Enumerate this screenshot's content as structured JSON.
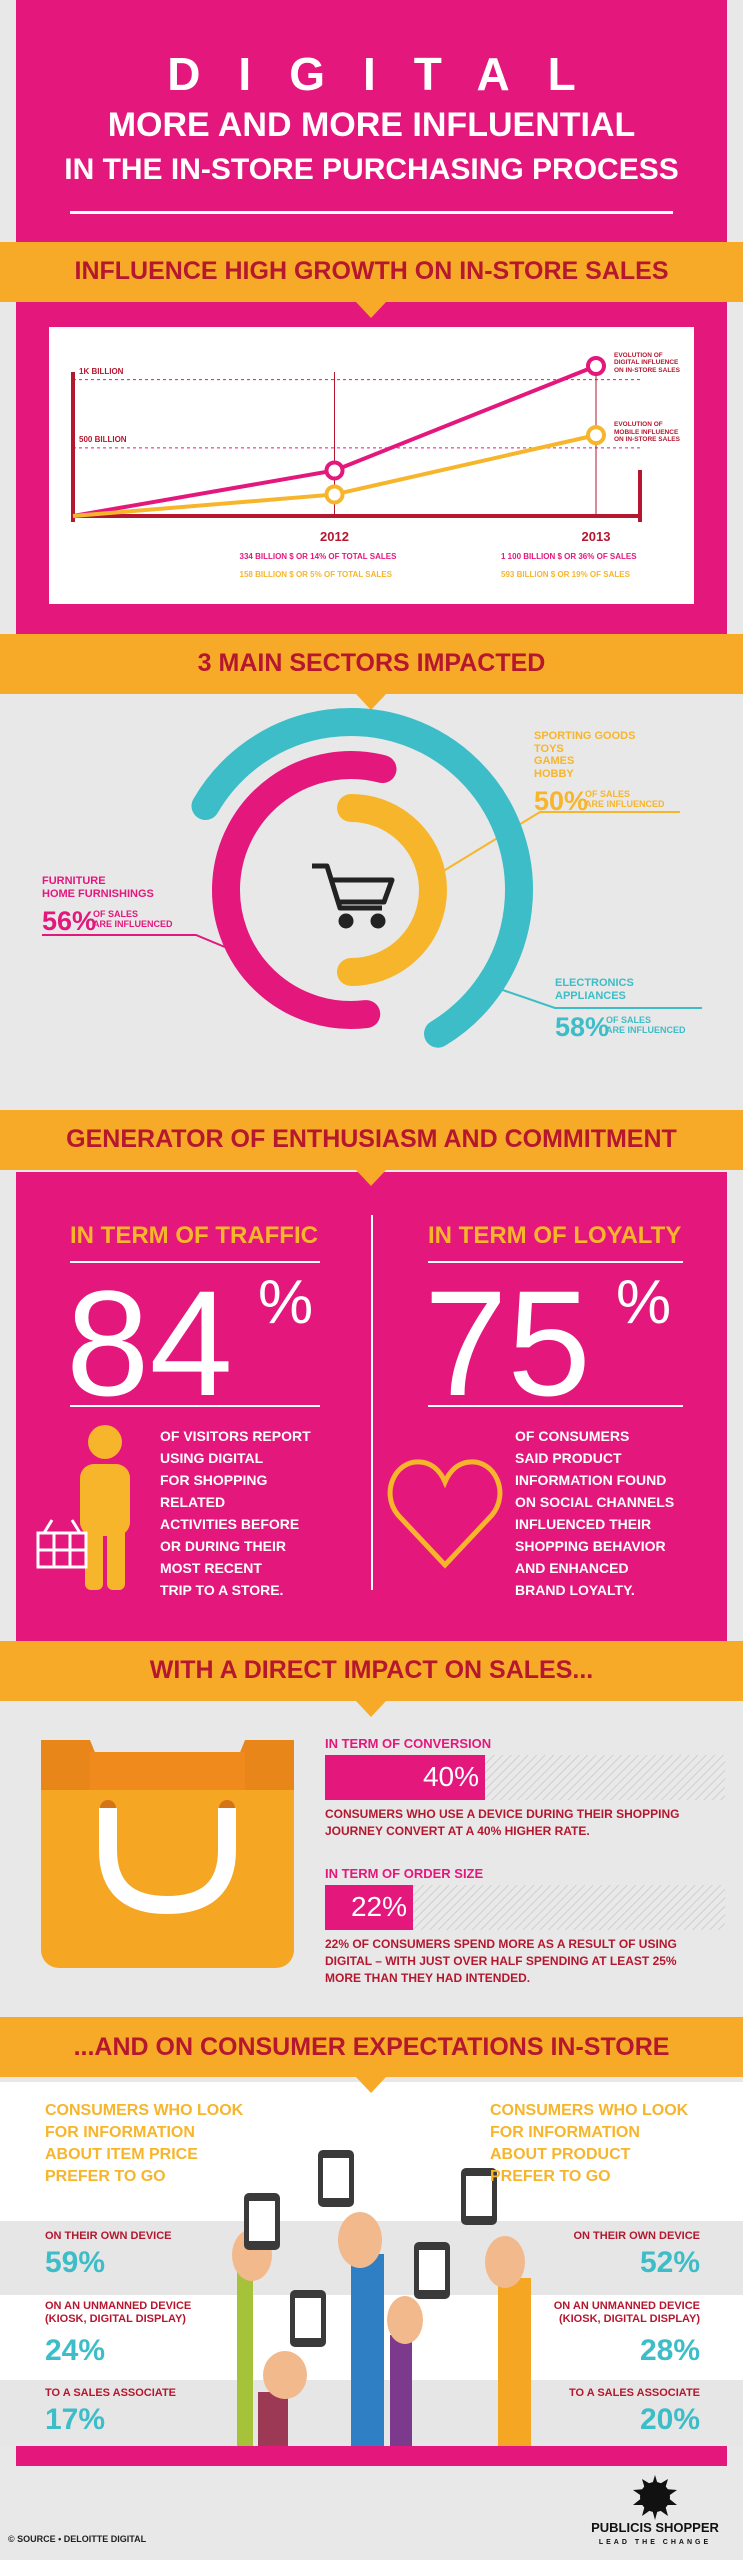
{
  "header": {
    "title": "DIGITAL",
    "lines": [
      "MORE AND MORE INFLUENTIAL",
      "IN THE IN-STORE PURCHASING PROCESS"
    ]
  },
  "chart_data": [
    {
      "type": "line",
      "title": "INFLUENCE HIGH GROWTH ON IN-STORE SALES",
      "categories": [
        null,
        "2012",
        "2013"
      ],
      "series": [
        {
          "name": "EVOLUTION OF DIGITAL INFLUENCE ON IN-STORE SALES",
          "color": "#e4177d",
          "values": [
            0,
            334,
            1100
          ],
          "value_labels": [
            null,
            "334 BILLION $ OR 14% OF TOTAL SALES",
            "1 100 BILLION $ OR 36% OF SALES"
          ]
        },
        {
          "name": "EVOLUTION OF MOBILE INFLUENCE ON IN-STORE SALES",
          "color": "#f7b52c",
          "values": [
            0,
            158,
            593
          ],
          "value_labels": [
            null,
            "158 BILLION $ OR 5% OF TOTAL SALES",
            "593 BILLION $ OR 19% OF SALES"
          ]
        }
      ],
      "ylim": [
        0,
        1100
      ],
      "yticks": [
        {
          "value": 500,
          "label": "500 BILLION"
        },
        {
          "value": 1000,
          "label": "1K BILLION"
        }
      ],
      "grid": true
    },
    {
      "type": "donut",
      "title": "3 MAIN SECTORS IMPACTED",
      "categories": [
        "FURNITURE\nHOME FURNISHINGS",
        "SPORTING GOODS\nTOYS\nGAMES\nHOBBY",
        "ELECTRONICS\nAPPLIANCES"
      ],
      "values": [
        56,
        50,
        58
      ],
      "value_labels": [
        "56%",
        "50%",
        "58%"
      ],
      "colors": [
        "#e4177d",
        "#f7b52c",
        "#3cbdc7"
      ],
      "note": "OF SALES\nARE INFLUENCED"
    }
  ],
  "commitment": {
    "banner": "GENERATOR OF ENTHUSIASM AND COMMITMENT",
    "columns": [
      {
        "heading": "IN TERM OF TRAFFIC",
        "number": "84",
        "unit": "%",
        "text": "OF VISITORS REPORT\nUSING DIGITAL\nFOR SHOPPING\nRELATED\nACTIVITIES BEFORE\nOR DURING THEIR\nMOST RECENT\nTRIP TO A STORE."
      },
      {
        "heading": "IN TERM OF LOYALTY",
        "number": "75",
        "unit": "%",
        "text": "OF CONSUMERS\nSAID PRODUCT\nINFORMATION FOUND\nON SOCIAL CHANNELS\nINFLUENCED THEIR\nSHOPPING BEHAVIOR\nAND ENHANCED\nBRAND LOYALTY."
      }
    ]
  },
  "sales": {
    "banner": "WITH A DIRECT IMPACT ON SALES...",
    "items": [
      {
        "heading": "IN TERM OF CONVERSION",
        "value": 40,
        "value_label": "40%",
        "text": "CONSUMERS WHO USE A DEVICE DURING THEIR SHOPPING\nJOURNEY CONVERT AT A 40% HIGHER RATE."
      },
      {
        "heading": "IN TERM OF ORDER SIZE",
        "value": 22,
        "value_label": "22%",
        "text": "22% OF CONSUMERS SPEND MORE AS A RESULT OF USING\nDIGITAL – WITH JUST OVER HALF SPENDING AT LEAST 25%\nMORE THAN THEY HAD INTENDED."
      }
    ]
  },
  "expectations": {
    "banner": "...AND ON CONSUMER EXPECTATIONS IN-STORE",
    "columns": [
      {
        "heading": "CONSUMERS WHO LOOK\nFOR INFORMATION\nABOUT ITEM PRICE\nPREFER TO GO",
        "rows": [
          {
            "label": "ON THEIR OWN DEVICE",
            "value": "59%"
          },
          {
            "label": "ON AN UNMANNED DEVICE\n(KIOSK, DIGITAL DISPLAY)",
            "value": "24%"
          },
          {
            "label": "TO A SALES ASSOCIATE",
            "value": "17%"
          }
        ]
      },
      {
        "heading": "CONSUMERS WHO LOOK\nFOR INFORMATION\nABOUT PRODUCT\nPREFER TO GO",
        "rows": [
          {
            "label": "ON THEIR OWN DEVICE",
            "value": "52%"
          },
          {
            "label": "ON AN UNMANNED DEVICE\n(KIOSK, DIGITAL DISPLAY)",
            "value": "28%"
          },
          {
            "label": "TO A SALES ASSOCIATE",
            "value": "20%"
          }
        ]
      }
    ]
  },
  "footer": {
    "source": "© SOURCE • DELOITTE DIGITAL",
    "brand": "PUBLICIS SHOPPER",
    "tagline": "LEAD THE CHANGE"
  }
}
